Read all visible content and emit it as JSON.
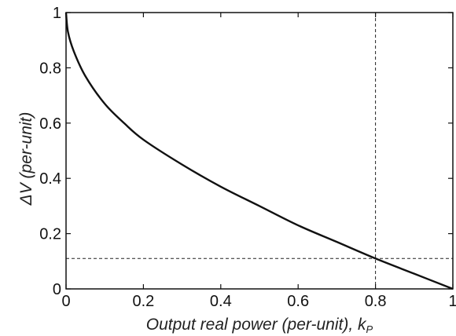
{
  "chart_data": {
    "type": "line",
    "title": "",
    "xlabel": "Output real power (per-unit), k",
    "xlabel_subscript": "P",
    "ylabel": "ΔV (per-unit)",
    "xlim": [
      0,
      1
    ],
    "ylim": [
      0,
      1
    ],
    "xticks": [
      "0",
      "0.2",
      "0.4",
      "0.6",
      "0.8",
      "1"
    ],
    "yticks": [
      "0",
      "0.2",
      "0.4",
      "0.6",
      "0.8",
      "1"
    ],
    "grid": false,
    "series": [
      {
        "x": [
          0,
          0.005,
          0.02,
          0.05,
          0.1,
          0.15,
          0.2,
          0.3,
          0.4,
          0.5,
          0.6,
          0.7,
          0.8,
          0.9,
          1.0
        ],
        "y": [
          1.0,
          0.93,
          0.86,
          0.77,
          0.67,
          0.6,
          0.54,
          0.45,
          0.37,
          0.3,
          0.23,
          0.17,
          0.11,
          0.055,
          0.0
        ],
        "color": "#111111",
        "style": "solid"
      }
    ],
    "reference_lines": [
      {
        "orientation": "vertical",
        "value": 0.8,
        "style": "dashed"
      },
      {
        "orientation": "horizontal",
        "value": 0.11,
        "style": "dashed"
      }
    ]
  }
}
